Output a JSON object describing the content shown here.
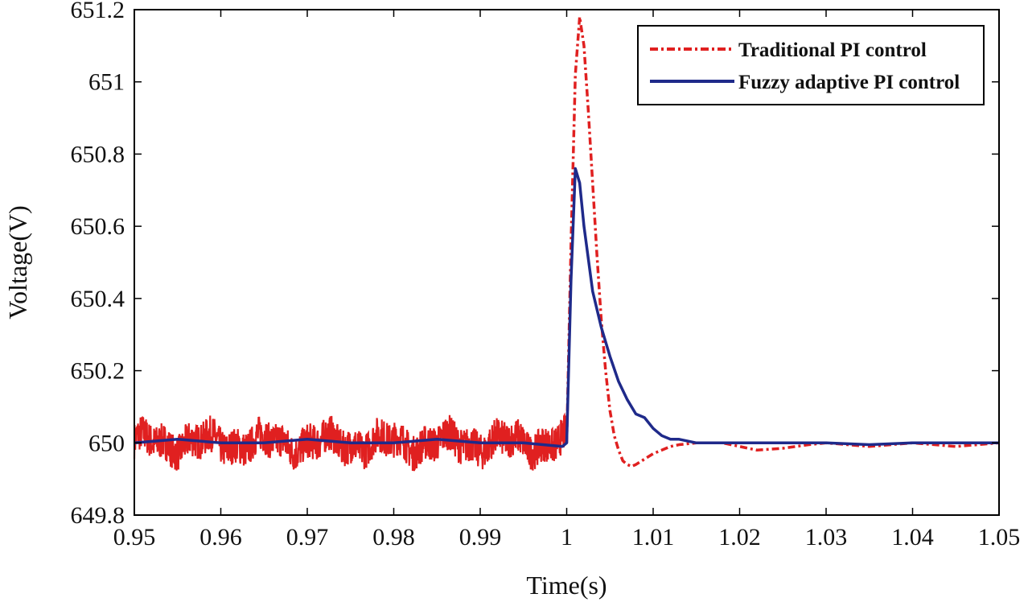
{
  "chart_data": {
    "type": "line",
    "title": "",
    "xlabel": "Time(s)",
    "ylabel": "Voltage(V)",
    "xlim": [
      0.95,
      1.05
    ],
    "ylim": [
      649.8,
      651.2
    ],
    "xticks": [
      0.95,
      0.96,
      0.97,
      0.98,
      0.99,
      1.0,
      1.01,
      1.02,
      1.03,
      1.04,
      1.05
    ],
    "xtick_labels": [
      "0.95",
      "0.96",
      "0.97",
      "0.98",
      "0.99",
      "1",
      "1.01",
      "1.02",
      "1.03",
      "1.04",
      "1.05"
    ],
    "yticks": [
      649.8,
      650.0,
      650.2,
      650.4,
      650.6,
      650.8,
      651.0,
      651.2
    ],
    "ytick_labels": [
      "649.8",
      "650",
      "650.2",
      "650.4",
      "650.6",
      "650.8",
      "651",
      "651.2"
    ],
    "grid": false,
    "legend_position": "top-right",
    "series": [
      {
        "name": "Traditional PI control",
        "color": "#e02020",
        "style": "dash-dot",
        "noisy_segment": {
          "x_range": [
            0.95,
            0.9999
          ],
          "mean": 650.0,
          "amplitude": 0.05
        },
        "x": [
          1.0,
          1.0005,
          1.001,
          1.0015,
          1.002,
          1.0025,
          1.003,
          1.0035,
          1.004,
          1.0045,
          1.005,
          1.0055,
          1.006,
          1.0065,
          1.007,
          1.0075,
          1.008,
          1.009,
          1.01,
          1.011,
          1.012,
          1.013,
          1.015,
          1.018,
          1.02,
          1.022,
          1.025,
          1.028,
          1.03,
          1.035,
          1.04,
          1.045,
          1.05
        ],
        "y": [
          650.0,
          650.55,
          651.02,
          651.18,
          651.1,
          650.92,
          650.72,
          650.52,
          650.34,
          650.2,
          650.09,
          650.02,
          649.98,
          649.95,
          649.94,
          649.935,
          649.94,
          649.955,
          649.97,
          649.98,
          649.99,
          649.995,
          650.0,
          650.0,
          649.99,
          649.98,
          649.985,
          649.995,
          650.0,
          649.99,
          650.0,
          649.99,
          650.0
        ]
      },
      {
        "name": "Fuzzy adaptive PI control",
        "color": "#1f2a8a",
        "style": "solid",
        "x": [
          0.95,
          0.955,
          0.96,
          0.965,
          0.97,
          0.975,
          0.98,
          0.985,
          0.99,
          0.995,
          0.9995,
          1.0,
          1.0005,
          1.001,
          1.0015,
          1.002,
          1.003,
          1.004,
          1.005,
          1.006,
          1.007,
          1.008,
          1.009,
          1.01,
          1.011,
          1.012,
          1.013,
          1.015,
          1.02,
          1.025,
          1.03,
          1.035,
          1.04,
          1.045,
          1.05
        ],
        "y": [
          650.0,
          650.01,
          650.0,
          650.0,
          650.01,
          650.0,
          650.0,
          650.01,
          650.0,
          650.0,
          649.99,
          650.0,
          650.45,
          650.76,
          650.72,
          650.6,
          650.42,
          650.32,
          650.24,
          650.17,
          650.12,
          650.08,
          650.07,
          650.04,
          650.02,
          650.01,
          650.01,
          650.0,
          650.0,
          650.0,
          650.0,
          649.995,
          650.0,
          650.0,
          650.0
        ]
      }
    ]
  }
}
